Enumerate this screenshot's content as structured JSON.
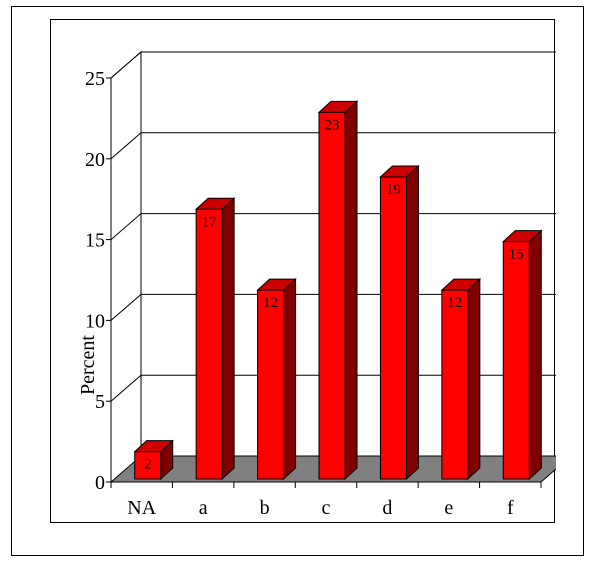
{
  "chart_data": {
    "type": "bar",
    "style": "3d-column",
    "categories": [
      "NA",
      "a",
      "b",
      "c",
      "d",
      "e",
      "f"
    ],
    "values": [
      2,
      17,
      12,
      23,
      19,
      12,
      15
    ],
    "data_labels": [
      "2",
      "17",
      "12",
      "23",
      "19",
      "12",
      "15"
    ],
    "ylabel": "Percent",
    "xlabel": "",
    "ylim": [
      0,
      25
    ],
    "yticks": [
      "0",
      "5",
      "10",
      "15",
      "20",
      "25"
    ],
    "grid": true,
    "legend": "none",
    "colors": {
      "bar_front": "#ff0000",
      "bar_top": "#cc0000",
      "bar_side": "#800000",
      "floor": "#808080",
      "walls": "#ffffff"
    }
  }
}
